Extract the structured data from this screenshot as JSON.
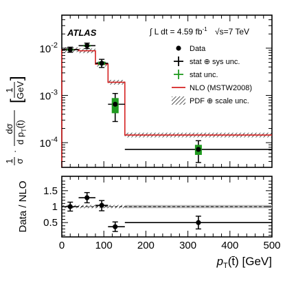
{
  "chart_data": [
    {
      "type": "line",
      "panel": "upper",
      "yscale": "log",
      "xlim": [
        0,
        500
      ],
      "ylim": [
        3e-05,
        0.05
      ],
      "ylabel_parts": {
        "frac_num": "1",
        "frac_den": "σ",
        "deriv_num": "dσ",
        "deriv_den": "d p",
        "sub": "T",
        "arg": "(t̄)",
        "unit_num": "1",
        "unit_den": "GeV"
      },
      "yticks": [
        {
          "v": 0.01,
          "base": "10",
          "exp": "-2"
        },
        {
          "v": 0.001,
          "base": "10",
          "exp": "-3"
        },
        {
          "v": 0.0001,
          "base": "10",
          "exp": "-4"
        }
      ],
      "experiment": "ATLAS",
      "lumi_text": "∫ L dt = 4.59 fb",
      "lumi_exp": "-1",
      "energy_text": "√s=7 TeV",
      "legend": [
        {
          "key": "data",
          "label": "Data"
        },
        {
          "key": "statsys",
          "label": "stat ⊕ sys unc."
        },
        {
          "key": "stat",
          "label": "stat unc."
        },
        {
          "key": "nlo",
          "label": "NLO (MSTW2008)"
        },
        {
          "key": "pdf",
          "label": "PDF ⊕ scale unc."
        }
      ],
      "bins": [
        {
          "lo": 0,
          "hi": 40,
          "x": 20,
          "data": 0.0093,
          "tot": [
            0.0082,
            0.0105
          ],
          "stat": [
            0.0089,
            0.0097
          ],
          "nlo": 0.0093
        },
        {
          "lo": 40,
          "hi": 80,
          "x": 60,
          "data": 0.0113,
          "tot": [
            0.0098,
            0.0128
          ],
          "stat": [
            0.0108,
            0.0118
          ],
          "nlo": 0.0088
        },
        {
          "lo": 80,
          "hi": 110,
          "x": 95,
          "data": 0.0048,
          "tot": [
            0.0039,
            0.0058
          ],
          "stat": [
            0.0044,
            0.0052
          ],
          "nlo": 0.0046
        },
        {
          "lo": 110,
          "hi": 150,
          "x": 127,
          "data": 0.00065,
          "tot": [
            0.00028,
            0.0011
          ],
          "stat": [
            0.00042,
            0.00088
          ],
          "nlo": 0.0019
        },
        {
          "lo": 150,
          "hi": 500,
          "x": 325,
          "data": 7.2e-05,
          "tot": [
            3.8e-05,
            0.00011
          ],
          "stat": [
            5.5e-05,
            9e-05
          ],
          "nlo": 0.000145
        }
      ]
    },
    {
      "type": "line",
      "panel": "lower",
      "ylabel": "Data / NLO",
      "xlabel_main": "p",
      "xlabel_sub": "T",
      "xlabel_arg": "(t̄) [GeV]",
      "xlim": [
        0,
        500
      ],
      "ylim": [
        0.05,
        1.95
      ],
      "xticks": [
        0,
        100,
        200,
        300,
        400,
        500
      ],
      "yticks": [
        {
          "v": 0.5,
          "label": "0.5"
        },
        {
          "v": 1,
          "label": "1"
        },
        {
          "v": 1.5,
          "label": "1.5"
        }
      ],
      "band": [
        0.95,
        1.05
      ],
      "points": [
        {
          "lo": 0,
          "hi": 40,
          "x": 20,
          "y": 1.0,
          "tot": [
            0.86,
            1.14
          ]
        },
        {
          "lo": 40,
          "hi": 80,
          "x": 60,
          "y": 1.28,
          "tot": [
            1.12,
            1.44
          ]
        },
        {
          "lo": 80,
          "hi": 110,
          "x": 95,
          "y": 1.04,
          "tot": [
            0.87,
            1.19
          ]
        },
        {
          "lo": 110,
          "hi": 150,
          "x": 127,
          "y": 0.37,
          "tot": [
            0.22,
            0.52
          ]
        },
        {
          "lo": 150,
          "hi": 500,
          "x": 325,
          "y": 0.5,
          "tot": [
            0.3,
            0.7
          ]
        }
      ]
    }
  ],
  "colors": {
    "stat": "#1f9a1f",
    "nlo": "#d42020",
    "band": "#bbbbbb",
    "ink": "#000000"
  }
}
